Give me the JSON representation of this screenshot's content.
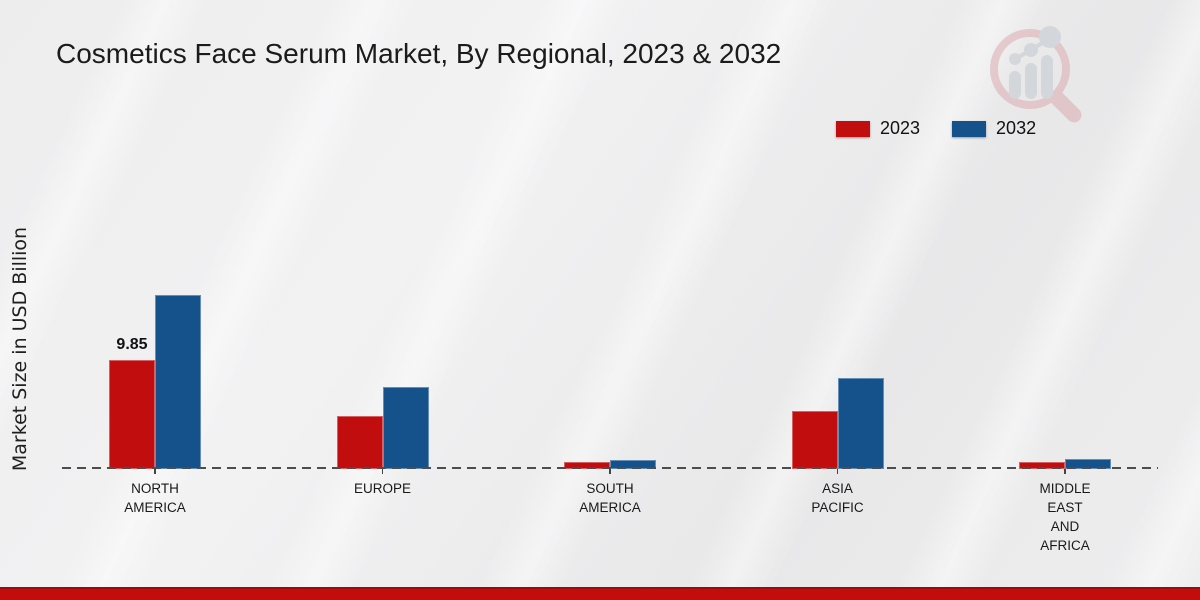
{
  "title": "Cosmetics Face Serum Market, By Regional, 2023 & 2032",
  "y_axis_label": "Market Size in USD Billion",
  "legend": {
    "items": [
      {
        "label": "2023",
        "color": "#c20d0e"
      },
      {
        "label": "2032",
        "color": "#15518b"
      }
    ]
  },
  "watermark": "magnifier-bar-chart-logo",
  "chart_data": {
    "type": "bar",
    "title": "Cosmetics Face Serum Market, By Regional, 2023 & 2032",
    "xlabel": "",
    "ylabel": "Market Size in USD Billion",
    "categories": [
      "NORTH\nAMERICA",
      "EUROPE",
      "SOUTH\nAMERICA",
      "ASIA\nPACIFIC",
      "MIDDLE\nEAST\nAND\nAFRICA"
    ],
    "series": [
      {
        "name": "2023",
        "color": "#c20d0e",
        "values": [
          9.85,
          4.8,
          0.6,
          5.2,
          0.6
        ],
        "value_labels": [
          "9.85",
          "",
          "",
          "",
          ""
        ]
      },
      {
        "name": "2032",
        "color": "#15518b",
        "values": [
          15.7,
          7.4,
          0.85,
          8.2,
          0.9
        ],
        "value_labels": [
          "",
          "",
          "",
          "",
          ""
        ]
      }
    ],
    "ylim": [
      0,
      17
    ],
    "grid": false,
    "baseline_style": "dashed",
    "legend_position": "top-right"
  }
}
